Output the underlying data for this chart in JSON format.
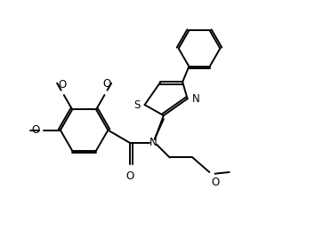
{
  "bg_color": "#ffffff",
  "line_color": "#000000",
  "line_width": 1.4,
  "font_size": 8.5,
  "fig_width": 3.54,
  "fig_height": 2.76,
  "dpi": 100,
  "xlim": [
    0,
    10
  ],
  "ylim": [
    0,
    8
  ]
}
